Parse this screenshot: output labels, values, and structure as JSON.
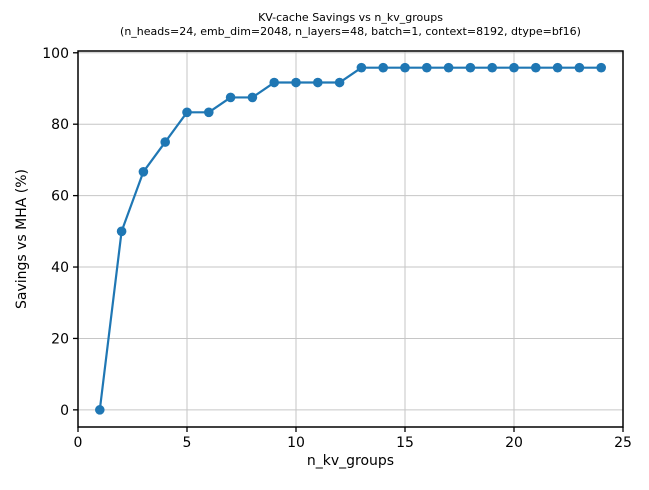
{
  "chart_data": {
    "type": "line",
    "title": "KV-cache Savings vs n_kv_groups",
    "subtitle": "(n_heads=24, emb_dim=2048, n_layers=48, batch=1, context=8192, dtype=bf16)",
    "xlabel": "n_kv_groups",
    "ylabel": "Savings vs MHA (%)",
    "x": [
      1,
      2,
      3,
      4,
      5,
      6,
      7,
      8,
      9,
      10,
      11,
      12,
      13,
      14,
      15,
      16,
      17,
      18,
      19,
      20,
      21,
      22,
      23,
      24
    ],
    "y": [
      0,
      50,
      66.67,
      75,
      83.33,
      83.33,
      87.5,
      87.5,
      91.67,
      91.67,
      91.67,
      91.67,
      95.83,
      95.83,
      95.83,
      95.83,
      95.83,
      95.83,
      95.83,
      95.83,
      95.83,
      95.83,
      95.83,
      95.83
    ],
    "xlim": [
      0,
      25
    ],
    "ylim": [
      -4.8,
      100.5
    ],
    "xticks": [
      0,
      5,
      10,
      15,
      20,
      25
    ],
    "yticks": [
      0,
      20,
      40,
      60,
      80,
      100
    ],
    "grid": true,
    "legend": "none",
    "marker": "circle",
    "line_color": "#1f77b4",
    "grid_color": "#c6c6c6",
    "axis_color": "#000000",
    "text_color": "#000000",
    "background_color": "#ffffff"
  }
}
